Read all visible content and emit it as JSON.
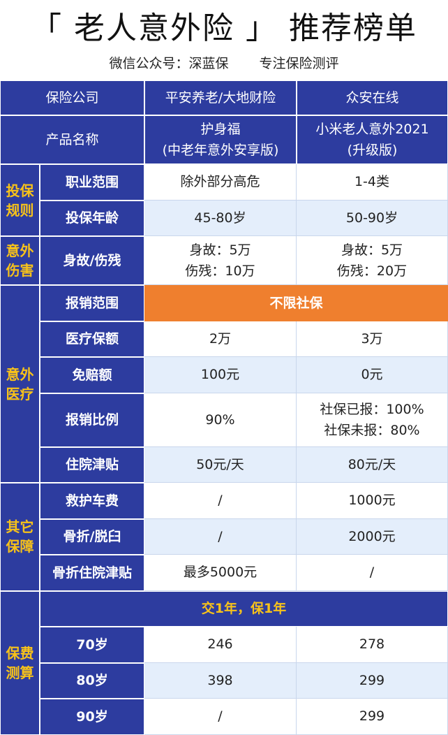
{
  "title": "「 老人意外险 」 推荐榜单",
  "subtitle": {
    "account": "微信公众号：深蓝保",
    "slogan": "专注保险测评"
  },
  "table": {
    "company_row": {
      "label": "保险公司",
      "cells": [
        "平安养老/大地财险",
        "众安在线"
      ]
    },
    "product_row": {
      "label": "产品名称",
      "cells": [
        [
          "护身福",
          "(中老年意外安享版)"
        ],
        [
          "小米老人意外2021",
          "(升级版)"
        ]
      ]
    },
    "groups": [
      {
        "label": [
          "投保",
          "规则"
        ],
        "rows": [
          {
            "label": "职业范围",
            "cells": [
              "除外部分高危",
              "1-4类"
            ]
          },
          {
            "label": "投保年龄",
            "cells": [
              "45-80岁",
              "50-90岁"
            ]
          }
        ]
      },
      {
        "label": [
          "意外",
          "伤害"
        ],
        "rows": [
          {
            "label": "身故/伤残",
            "cells": [
              [
                "身故：5万",
                "伤残：10万"
              ],
              [
                "身故：5万",
                "伤残：20万"
              ]
            ]
          }
        ]
      },
      {
        "label": [
          "意外",
          "医疗"
        ],
        "rows": [
          {
            "label": "报销范围",
            "merged": "不限社保"
          },
          {
            "label": "医疗保额",
            "cells": [
              "2万",
              "3万"
            ]
          },
          {
            "label": "免赔额",
            "cells": [
              "100元",
              "0元"
            ]
          },
          {
            "label": "报销比例",
            "cells": [
              "90%",
              [
                "社保已报：100%",
                "社保未报：80%"
              ]
            ]
          },
          {
            "label": "住院津贴",
            "cells": [
              "50元/天",
              "80元/天"
            ]
          }
        ]
      },
      {
        "label": [
          "其它",
          "保障"
        ],
        "rows": [
          {
            "label": "救护车费",
            "cells": [
              "/",
              "1000元"
            ]
          },
          {
            "label": "骨折/脱臼",
            "cells": [
              "/",
              "2000元"
            ]
          },
          {
            "label": "骨折住院津贴",
            "cells": [
              "最多5000元",
              "/"
            ]
          }
        ]
      },
      {
        "label": [
          "保费",
          "测算"
        ],
        "rows": [
          {
            "merged": "交1年，保1年"
          },
          {
            "label": "70岁",
            "cells": [
              "246",
              "278"
            ]
          },
          {
            "label": "80岁",
            "cells": [
              "398",
              "299"
            ]
          },
          {
            "label": "90岁",
            "cells": [
              "/",
              "299"
            ]
          }
        ]
      }
    ]
  }
}
